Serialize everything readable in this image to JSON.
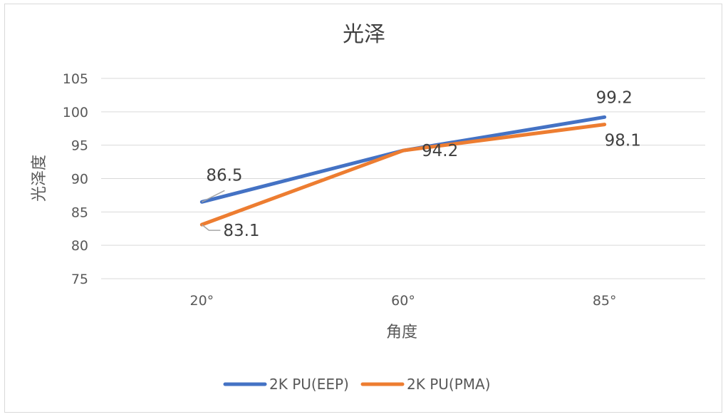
{
  "chart_data": {
    "type": "line",
    "title": "光泽",
    "xlabel": "角度",
    "ylabel": "光泽度",
    "categories": [
      "20°",
      "60°",
      "85°"
    ],
    "ylim": [
      75,
      105
    ],
    "yticks": [
      75,
      80,
      85,
      90,
      95,
      100,
      105
    ],
    "grid": true,
    "legend_position": "bottom",
    "series": [
      {
        "name": "2K PU(EEP)",
        "values": [
          86.5,
          94.2,
          99.2
        ],
        "color": "#4472c4",
        "data_labels": [
          "86.5",
          "94.2",
          "99.2"
        ]
      },
      {
        "name": "2K PU(PMA)",
        "values": [
          83.1,
          94.2,
          98.1
        ],
        "color": "#ed7d31",
        "data_labels": [
          "83.1",
          "",
          "98.1"
        ]
      }
    ]
  }
}
